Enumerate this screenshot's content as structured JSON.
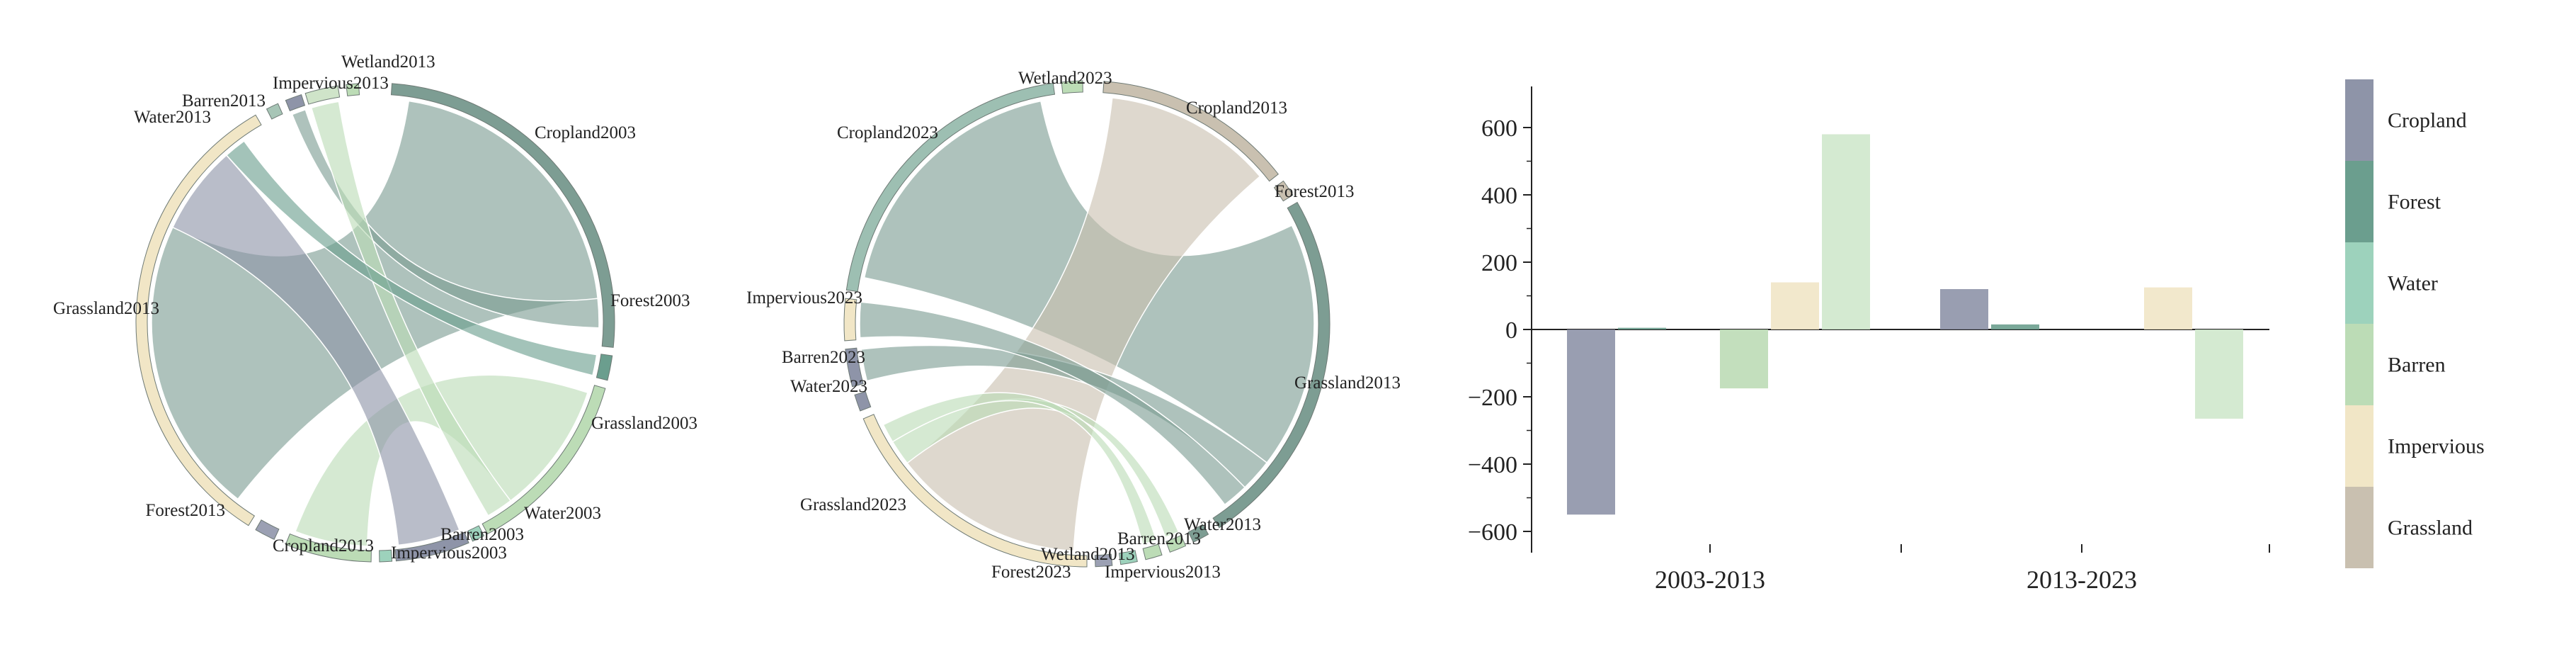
{
  "palette": {
    "Cropland": "#8e94a8",
    "Forest": "#6b9e8e",
    "Water": "#9dd2bc",
    "Barren": "#bcdcb6",
    "Impervious": "#f1e6c6",
    "Grassland": "#c9c0b0",
    "Wetland": "#cfe4c9"
  },
  "chart_data": [
    {
      "type": "chord",
      "groups": [
        {
          "label": "Cropland2003",
          "color": "#7d9d93"
        },
        {
          "label": "Forest2003",
          "color": "#6b9e8e"
        },
        {
          "label": "Grassland2003",
          "color": "#bcdcb6"
        },
        {
          "label": "Water2003",
          "color": "#9dd2bc"
        },
        {
          "label": "Barren2003",
          "color": "#8e94a8"
        },
        {
          "label": "Impervious2003",
          "color": "#9dd2bc"
        },
        {
          "label": "Cropland2013",
          "color": "#bcdcb6"
        },
        {
          "label": "Forest2013",
          "color": "#9ba0b3"
        },
        {
          "label": "Grassland2013",
          "color": "#f1e6c6"
        },
        {
          "label": "Water2013",
          "color": "#a7c5b6"
        },
        {
          "label": "Barren2013",
          "color": "#8e94a8"
        },
        {
          "label": "Impervious2013",
          "color": "#cfe4c9"
        },
        {
          "label": "Wetland2013",
          "color": "#bcdcb6"
        }
      ],
      "flows": [
        {
          "from": "Cropland2003",
          "to": "Grassland2013",
          "value": 40
        },
        {
          "from": "Grassland2003",
          "to": "Cropland2013",
          "value": 30
        },
        {
          "from": "Barren2003",
          "to": "Grassland2013",
          "value": 12
        },
        {
          "from": "Cropland2003",
          "to": "Barren2013",
          "value": 4
        },
        {
          "from": "Grassland2003",
          "to": "Impervious2013",
          "value": 6
        },
        {
          "from": "Forest2003",
          "to": "Grassland2013",
          "value": 3
        }
      ]
    },
    {
      "type": "chord",
      "groups": [
        {
          "label": "Cropland2013",
          "color": "#c9c0b0"
        },
        {
          "label": "Forest2013",
          "color": "#c9c0b0"
        },
        {
          "label": "Grassland2013",
          "color": "#7d9d93"
        },
        {
          "label": "Water2013",
          "color": "#7d9d93"
        },
        {
          "label": "Barren2013",
          "color": "#bcdcb6"
        },
        {
          "label": "Impervious2013",
          "color": "#bcdcb6"
        },
        {
          "label": "Wetland2013",
          "color": "#9dd2bc"
        },
        {
          "label": "Forest2023",
          "color": "#9ba0b3"
        },
        {
          "label": "Grassland2023",
          "color": "#f1e6c6"
        },
        {
          "label": "Water2023",
          "color": "#8e94a8"
        },
        {
          "label": "Barren2023",
          "color": "#8e94a8"
        },
        {
          "label": "Impervious2023",
          "color": "#f1e6c6"
        },
        {
          "label": "Cropland2023",
          "color": "#9dbfb2"
        },
        {
          "label": "Wetland2023",
          "color": "#bcdcb6"
        }
      ],
      "flows": [
        {
          "from": "Grassland2013",
          "to": "Cropland2023",
          "value": 38
        },
        {
          "from": "Cropland2013",
          "to": "Grassland2023",
          "value": 30
        },
        {
          "from": "Grassland2013",
          "to": "Barren2023",
          "value": 5
        },
        {
          "from": "Grassland2013",
          "to": "Impervious2023",
          "value": 4
        },
        {
          "from": "Barren2013",
          "to": "Grassland2023",
          "value": 4
        },
        {
          "from": "Impervious2013",
          "to": "Grassland2023",
          "value": 3
        }
      ]
    },
    {
      "type": "bar",
      "categories": [
        "2003-2013",
        "2013-2023"
      ],
      "series": [
        {
          "name": "Cropland",
          "color": "#8e94a8",
          "values": [
            -550,
            120
          ]
        },
        {
          "name": "Forest",
          "color": "#6b9e8e",
          "values": [
            5,
            15
          ]
        },
        {
          "name": "Water",
          "color": "#9dd2bc",
          "values": [
            0,
            0
          ]
        },
        {
          "name": "Barren",
          "color": "#bcdcb6",
          "values": [
            -175,
            0
          ]
        },
        {
          "name": "Impervious",
          "color": "#f1e6c6",
          "values": [
            140,
            125
          ]
        },
        {
          "name": "Grassland",
          "color": "#cfe8cc",
          "values": [
            580,
            -265
          ]
        }
      ],
      "ylim": [
        -620,
        720
      ],
      "yticks": [
        -600,
        -400,
        -200,
        0,
        200,
        400,
        600
      ],
      "ytick_labels": [
        "−600",
        "−400",
        "−200",
        "0",
        "200",
        "400",
        "600"
      ],
      "legend": {
        "position": "right",
        "entries": [
          {
            "label": "Cropland",
            "color": "#8e94a8"
          },
          {
            "label": "Forest",
            "color": "#6b9e8e"
          },
          {
            "label": "Water",
            "color": "#9dd2bc"
          },
          {
            "label": "Barren",
            "color": "#bcdcb6"
          },
          {
            "label": "Impervious",
            "color": "#f1e6c6"
          },
          {
            "label": "Grassland",
            "color": "#c9c0b0"
          }
        ]
      }
    }
  ]
}
